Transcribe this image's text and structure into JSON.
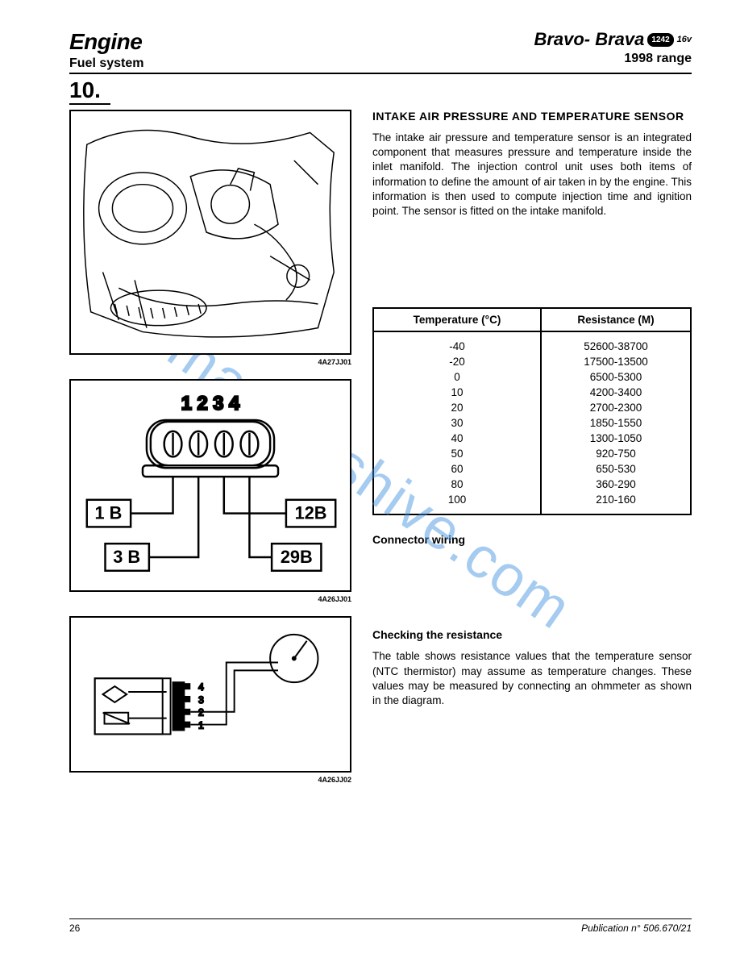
{
  "header": {
    "title": "Engine",
    "subtitle": "Fuel system",
    "model": "Bravo- Brava",
    "badge": "1242",
    "variant": "16v",
    "range": "1998 range"
  },
  "section_number": "10.",
  "sensor": {
    "heading": "INTAKE AIR PRESSURE AND TEMPERATURE SENSOR",
    "body": "The intake air pressure and temperature sensor is an integrated component that measures pressure and temperature inside the inlet manifold. The injection control unit uses both items of information to define the amount of air taken in by the engine. This information is then used to compute injection time and ignition point. The sensor is fitted on the intake manifold."
  },
  "figures": {
    "fig1_ref": "4A27JJ01",
    "fig2_ref": "4A26JJ01",
    "fig3_ref": "4A26JJ02",
    "connector_pins": "1 2 3 4",
    "connector_labels": {
      "p1": "1 B",
      "p2": "12B",
      "p3": "3 B",
      "p4": "29B"
    }
  },
  "table": {
    "col1": "Temperature (°C)",
    "col2": "Resistance (M)",
    "rows": [
      [
        "-40",
        "52600-38700"
      ],
      [
        "-20",
        "17500-13500"
      ],
      [
        "0",
        "6500-5300"
      ],
      [
        "10",
        "4200-3400"
      ],
      [
        "20",
        "2700-2300"
      ],
      [
        "30",
        "1850-1550"
      ],
      [
        "40",
        "1300-1050"
      ],
      [
        "50",
        "920-750"
      ],
      [
        "60",
        "650-530"
      ],
      [
        "80",
        "360-290"
      ],
      [
        "100",
        "210-160"
      ]
    ]
  },
  "connector_wiring_label": "Connector wiring",
  "checking": {
    "heading": "Checking the resistance",
    "body": "The table shows resistance values that the temperature sensor (NTC thermistor) may assume as temperature changes. These values may be measured by connecting an ohmmeter as shown in the diagram."
  },
  "footer": {
    "page": "26",
    "pub": "Publication n° 506.670/21"
  },
  "watermark": "manualshive.com"
}
